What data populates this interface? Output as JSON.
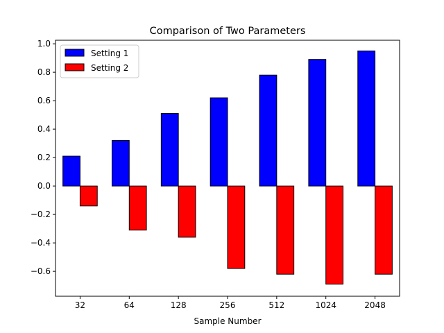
{
  "chart_data": {
    "type": "bar",
    "title": "Comparison of Two Parameters",
    "xlabel": "Sample Number",
    "ylabel": "",
    "categories": [
      "32",
      "64",
      "128",
      "256",
      "512",
      "1024",
      "2048"
    ],
    "series": [
      {
        "name": "Setting 1",
        "color": "#0000ff",
        "values": [
          0.21,
          0.32,
          0.51,
          0.62,
          0.78,
          0.89,
          0.95
        ]
      },
      {
        "name": "Setting 2",
        "color": "#ff0000",
        "values": [
          -0.14,
          -0.31,
          -0.36,
          -0.58,
          -0.62,
          -0.69,
          -0.62
        ]
      }
    ],
    "ylim": [
      -0.775,
      1.025
    ],
    "yticks": [
      -0.6,
      -0.4,
      -0.2,
      0.0,
      0.2,
      0.4,
      0.6,
      0.8,
      1.0
    ],
    "ytick_labels": [
      "−0.6",
      "−0.4",
      "−0.2",
      "0.0",
      "0.2",
      "0.4",
      "0.6",
      "0.8",
      "1.0"
    ],
    "grid": false,
    "legend_position": "top-left"
  }
}
